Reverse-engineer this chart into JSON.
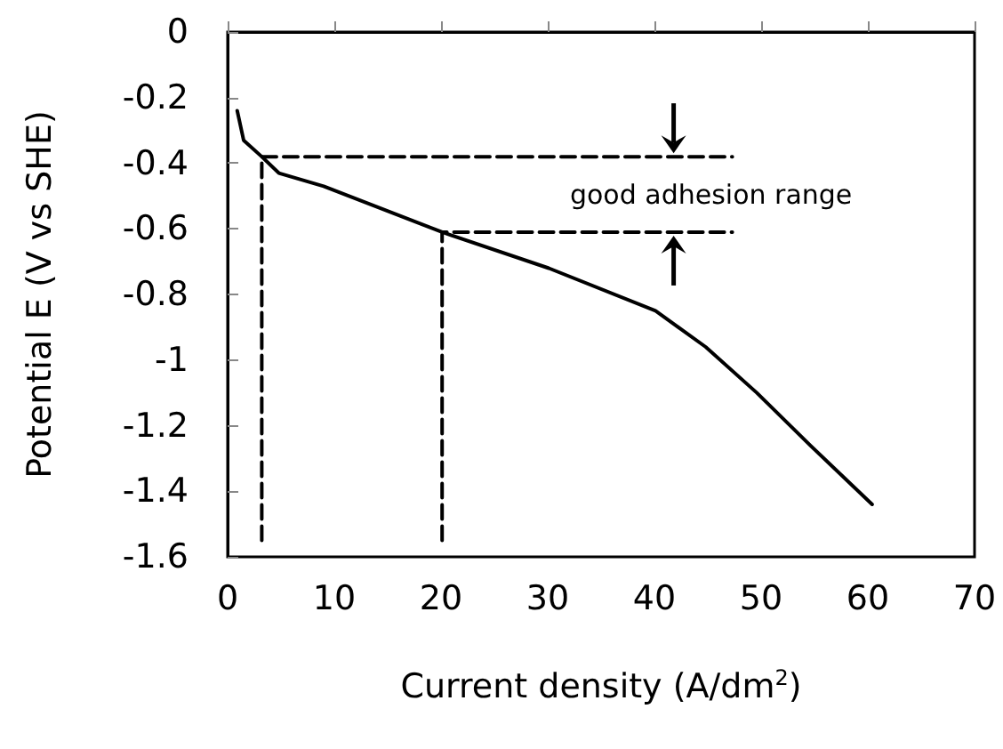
{
  "chart_data": {
    "type": "line",
    "xlabel": "Current density (A/dm$^{2}$)",
    "ylabel": "Potential E (V vs SHE)",
    "xlim": [
      0,
      70
    ],
    "xticks": [
      0,
      10,
      20,
      30,
      40,
      50,
      60,
      70
    ],
    "ylim": [
      -1.6,
      0
    ],
    "yticks": [
      0,
      -0.2,
      -0.4,
      -0.6,
      -0.8,
      -1,
      -1.2,
      -1.4,
      -1.6
    ],
    "grid": false,
    "marker": "none",
    "series": [
      {
        "color": "#000000",
        "line_style": "solid",
        "x": [
          0.9,
          1.5,
          3.2,
          4.8,
          9,
          20.1,
          30.1,
          40.1,
          44.8,
          49.6,
          54.6,
          60.4
        ],
        "values": [
          -0.24,
          -0.33,
          -0.38,
          -0.43,
          -0.47,
          -0.61,
          -0.72,
          -0.85,
          -0.96,
          -1.1,
          -1.26,
          -1.44
        ]
      },
      {
        "color": "#000000",
        "line_style": "dashed",
        "x": [
          3.2,
          3.2,
          47.3
        ],
        "values": [
          -1.55,
          -0.38,
          -0.38
        ]
      },
      {
        "color": "#000000",
        "line_style": "dashed",
        "x": [
          20.1,
          20.1,
          47.3
        ],
        "values": [
          -1.55,
          -0.61,
          -0.61
        ]
      }
    ],
    "annotations": [
      "good adhesion range"
    ]
  }
}
